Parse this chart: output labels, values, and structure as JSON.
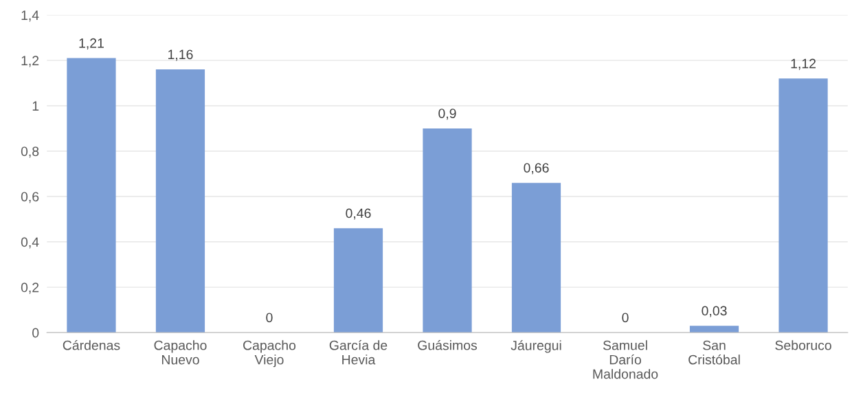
{
  "chart_data": {
    "type": "bar",
    "categories": [
      "Cárdenas",
      "Capacho Nuevo",
      "Capacho Viejo",
      "García de Hevia",
      "Guásimos",
      "Jáuregui",
      "Samuel Darío Maldonado",
      "San Cristóbal",
      "Seboruco"
    ],
    "values": [
      1.21,
      1.16,
      0,
      0.46,
      0.9,
      0.66,
      0,
      0.03,
      1.12
    ],
    "value_labels": [
      "1,21",
      "1,16",
      "0",
      "0,46",
      "0,9",
      "0,66",
      "0",
      "0,03",
      "1,12"
    ],
    "color": "#7b9ed6",
    "ylim": [
      0,
      1.4
    ],
    "yticks": [
      0,
      {
        "value": 0.2,
        "label": "0,2"
      },
      {
        "value": 0.4,
        "label": "0,4"
      },
      {
        "value": 0.6,
        "label": "0,6"
      },
      {
        "value": 0.8,
        "label": "0,8"
      },
      1,
      {
        "value": 1.2,
        "label": "1,2"
      },
      {
        "value": 1.4,
        "label": "1,4"
      }
    ],
    "grid": "y",
    "legend": false
  }
}
